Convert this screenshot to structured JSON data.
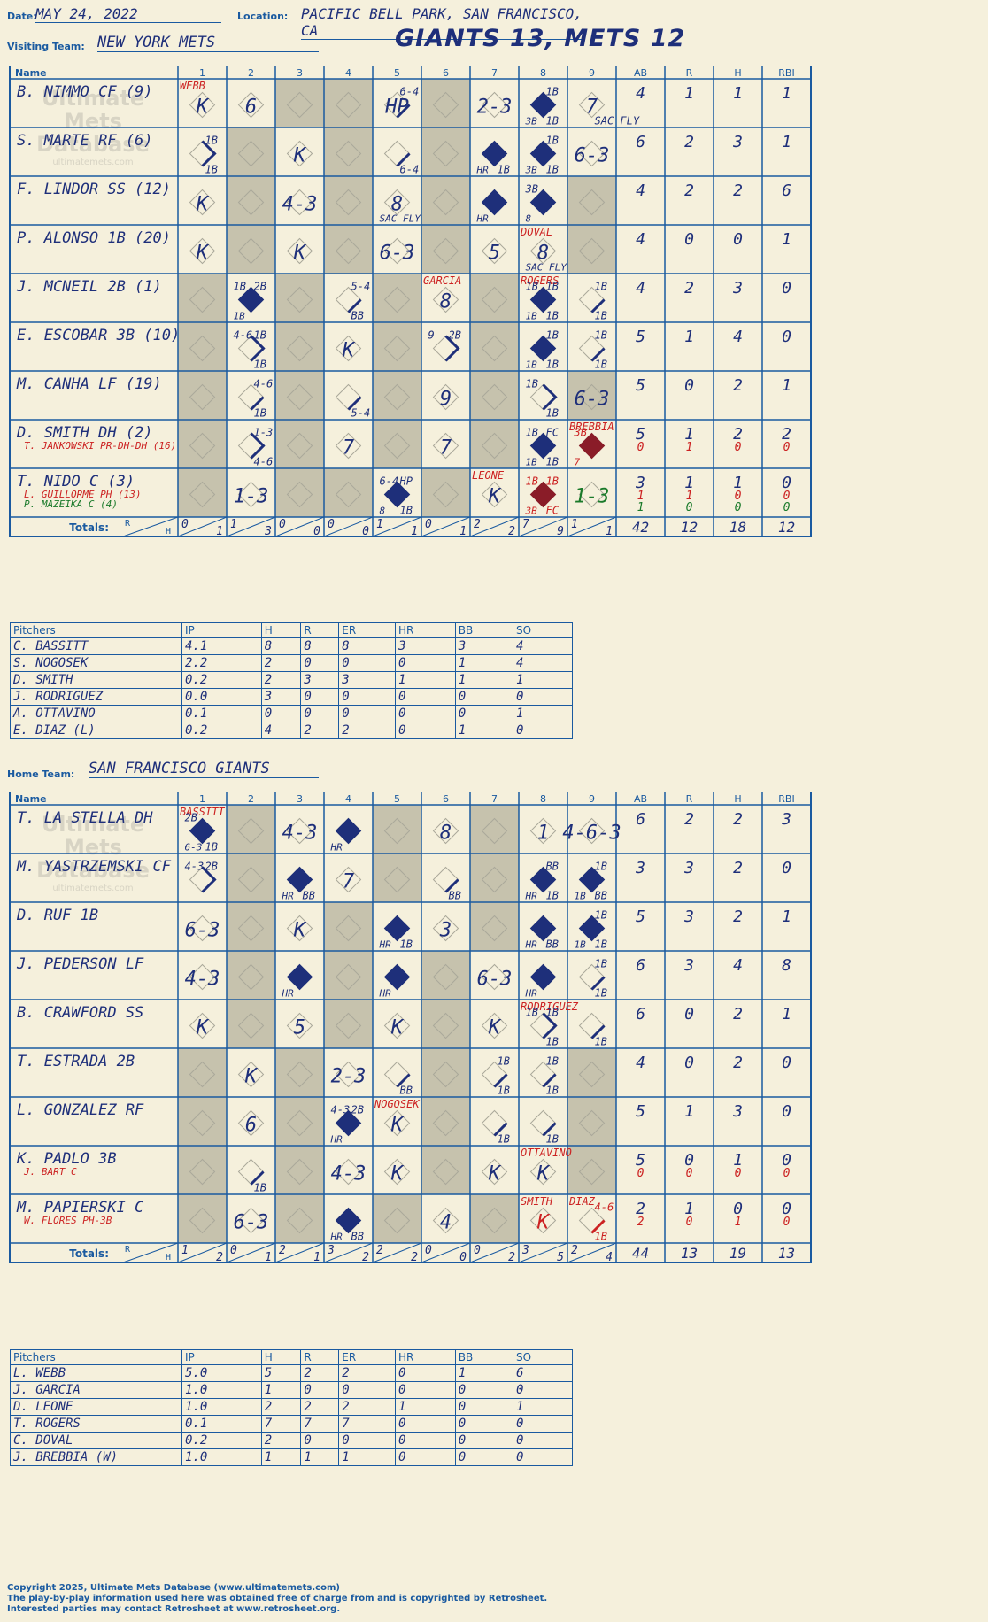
{
  "header": {
    "date_label": "Date:",
    "date": "MAY 24, 2022",
    "location_label": "Location:",
    "location": "PACIFIC BELL PARK, SAN FRANCISCO, CA",
    "visiting_label": "Visiting Team:",
    "visiting_team": "NEW YORK METS",
    "home_label": "Home Team:",
    "home_team": "SAN FRANCISCO GIANTS",
    "title": "GIANTS 13, METS 12"
  },
  "watermark": {
    "line1": "Ultimate",
    "line2": "Mets",
    "line3": "Database",
    "url": "ultimatemets.com"
  },
  "grid_labels": {
    "name": "Name",
    "innings": [
      "1",
      "2",
      "3",
      "4",
      "5",
      "6",
      "7",
      "8",
      "9"
    ],
    "stats": [
      "AB",
      "R",
      "H",
      "RBI"
    ],
    "totals": "Totals:",
    "r": "R",
    "h": "H"
  },
  "colors": {
    "ink": "#1e2f7a",
    "line": "#1a5aa0",
    "red": "#cc2222",
    "green": "#1a7a2a",
    "shade": "#c6c2ad",
    "bg": "#f5f0dc"
  },
  "visitors": {
    "players": [
      {
        "name": "B. NIMMO CF (9)",
        "subs": [],
        "stats": [
          [
            "4",
            "1",
            "1",
            "1"
          ]
        ]
      },
      {
        "name": "S. MARTE RF (6)",
        "subs": [],
        "stats": [
          [
            "6",
            "2",
            "3",
            "1"
          ]
        ]
      },
      {
        "name": "F. LINDOR SS (12)",
        "subs": [],
        "stats": [
          [
            "4",
            "2",
            "2",
            "6"
          ]
        ]
      },
      {
        "name": "P. ALONSO 1B (20)",
        "subs": [],
        "stats": [
          [
            "4",
            "0",
            "0",
            "1"
          ]
        ]
      },
      {
        "name": "J. MCNEIL 2B (1)",
        "subs": [],
        "stats": [
          [
            "4",
            "2",
            "3",
            "0"
          ]
        ]
      },
      {
        "name": "E. ESCOBAR 3B (10)",
        "subs": [],
        "stats": [
          [
            "5",
            "1",
            "4",
            "0"
          ]
        ]
      },
      {
        "name": "M. CANHA LF (19)",
        "subs": [],
        "stats": [
          [
            "5",
            "0",
            "2",
            "1"
          ]
        ]
      },
      {
        "name": "D. SMITH DH (2)",
        "subs": [
          {
            "name": "T. JANKOWSKI PR-DH-DH (16)",
            "color": "#cc2222"
          }
        ],
        "stats": [
          [
            "5",
            "1",
            "2",
            "2"
          ],
          [
            "0",
            "1",
            "0",
            "0"
          ]
        ]
      },
      {
        "name": "T. NIDO C (3)",
        "subs": [
          {
            "name": "L. GUILLORME PH (13)",
            "color": "#cc2222"
          },
          {
            "name": "P. MAZEIKA C (4)",
            "color": "#1a7a2a"
          }
        ],
        "stats": [
          [
            "3",
            "1",
            "1",
            "0"
          ],
          [
            "1",
            "1",
            "0",
            "0"
          ],
          [
            "1",
            "0",
            "0",
            "0"
          ]
        ]
      }
    ],
    "totals_by_inning": [
      [
        "0",
        "1"
      ],
      [
        "1",
        "3"
      ],
      [
        "0",
        "0"
      ],
      [
        "0",
        "0"
      ],
      [
        "1",
        "1"
      ],
      [
        "0",
        "1"
      ],
      [
        "2",
        "2"
      ],
      [
        "7",
        "9"
      ],
      [
        "1",
        "1"
      ]
    ],
    "totals": [
      "42",
      "12",
      "18",
      "12"
    ],
    "cells": [
      [
        {
          "i": 1,
          "t": "K",
          "top": "WEBB"
        },
        {
          "i": 2,
          "t": "6"
        },
        {
          "i": 5,
          "t": "HP",
          "tr": "6-4",
          "path": "1"
        },
        {
          "i": 7,
          "t": "2-3"
        },
        {
          "i": 8,
          "full": true,
          "tr": "1B",
          "bl": "3B",
          "br": "1B"
        },
        {
          "i": 9,
          "t": "7",
          "br": "SAC FLY"
        }
      ],
      [
        {
          "i": 1,
          "path": "2",
          "tr": "1B",
          "br": "1B"
        },
        {
          "i": 3,
          "t": "K"
        },
        {
          "i": 5,
          "path": "1",
          "br": "6-4"
        },
        {
          "i": 7,
          "full": true,
          "bl": "HR",
          "br": "1B"
        },
        {
          "i": 8,
          "full": true,
          "tr": "1B",
          "bl": "3B",
          "br": "1B"
        },
        {
          "i": 9,
          "t": "6-3"
        }
      ],
      [
        {
          "i": 1,
          "t": "K"
        },
        {
          "i": 3,
          "t": "4-3"
        },
        {
          "i": 5,
          "t": "8",
          "bl": "SAC FLY"
        },
        {
          "i": 7,
          "full": true,
          "bl": "HR"
        },
        {
          "i": 8,
          "full": true,
          "tl": "3B",
          "bl": "8"
        }
      ],
      [
        {
          "i": 1,
          "t": "K"
        },
        {
          "i": 3,
          "t": "K"
        },
        {
          "i": 5,
          "t": "6-3"
        },
        {
          "i": 7,
          "t": "5"
        },
        {
          "i": 8,
          "t": "8",
          "top": "DOVAL",
          "bl": "SAC FLY"
        }
      ],
      [
        {
          "i": 2,
          "full": true,
          "tl": "1B",
          "tr": "2B",
          "bl": "1B"
        },
        {
          "i": 4,
          "path": "1",
          "tr": "5-4",
          "br": "BB"
        },
        {
          "i": 6,
          "t": "8",
          "top": "GARCIA"
        },
        {
          "i": 8,
          "full": true,
          "top": "ROGERS",
          "tl": "1B",
          "tr": "1B",
          "bl": "1B",
          "br": "1B"
        },
        {
          "i": 9,
          "path": "1",
          "tr": "1B",
          "br": "1B"
        }
      ],
      [
        {
          "i": 2,
          "path": "2",
          "tl": "4-6",
          "tr": "1B",
          "br": "1B"
        },
        {
          "i": 4,
          "t": "K"
        },
        {
          "i": 6,
          "path": "2",
          "tl": "9",
          "tr": "2B"
        },
        {
          "i": 8,
          "full": true,
          "tr": "1B",
          "bl": "1B",
          "br": "1B"
        },
        {
          "i": 9,
          "path": "1",
          "tr": "1B",
          "br": "1B"
        }
      ],
      [
        {
          "i": 2,
          "path": "1",
          "tr": "4-6",
          "br": "1B"
        },
        {
          "i": 4,
          "path": "1",
          "br": "5-4"
        },
        {
          "i": 6,
          "t": "9"
        },
        {
          "i": 8,
          "path": "2",
          "tl": "1B",
          "br": "1B"
        },
        {
          "i": 8,
          "t2": "6-3"
        }
      ],
      [
        {
          "i": 2,
          "path": "2",
          "tr": "1-3",
          "br": "4-6"
        },
        {
          "i": 4,
          "t": "7"
        },
        {
          "i": 6,
          "t": "7"
        },
        {
          "i": 8,
          "full": true,
          "tl": "1B",
          "tr": "FC",
          "bl": "1B",
          "br": "1B"
        },
        {
          "i": 9,
          "full": true,
          "fill": "#8a1c28",
          "top": "BREBBIA",
          "tl": "3B",
          "bl": "7",
          "color": "#cc2222"
        }
      ],
      [
        {
          "i": 2,
          "t": "1-3"
        },
        {
          "i": 5,
          "full": true,
          "tl": "6-4",
          "tr": "HP",
          "bl": "8",
          "br": "1B"
        },
        {
          "i": 7,
          "t": "K",
          "top": "LEONE"
        },
        {
          "i": 8,
          "full": true,
          "fill": "#8a1c28",
          "color": "#cc2222",
          "tl": "1B",
          "tr": "1B",
          "bl": "3B",
          "br": "FC"
        },
        {
          "i": 9,
          "t": "1-3",
          "color": "#1a7a2a"
        }
      ]
    ]
  },
  "visiting_pitchers": {
    "headers": [
      "Pitchers",
      "IP",
      "H",
      "R",
      "ER",
      "HR",
      "BB",
      "SO"
    ],
    "rows": [
      [
        "C. BASSITT",
        "4.1",
        "8",
        "8",
        "8",
        "3",
        "3",
        "4"
      ],
      [
        "S. NOGOSEK",
        "2.2",
        "2",
        "0",
        "0",
        "0",
        "1",
        "4"
      ],
      [
        "D. SMITH",
        "0.2",
        "2",
        "3",
        "3",
        "1",
        "1",
        "1"
      ],
      [
        "J. RODRIGUEZ",
        "0.0",
        "3",
        "0",
        "0",
        "0",
        "0",
        "0"
      ],
      [
        "A. OTTAVINO",
        "0.1",
        "0",
        "0",
        "0",
        "0",
        "0",
        "1"
      ],
      [
        "E. DIAZ (L)",
        "0.2",
        "4",
        "2",
        "2",
        "0",
        "1",
        "0"
      ]
    ]
  },
  "home": {
    "players": [
      {
        "name": "T. LA STELLA DH",
        "subs": [],
        "stats": [
          [
            "6",
            "2",
            "2",
            "3"
          ]
        ]
      },
      {
        "name": "M. YASTRZEMSKI CF",
        "subs": [],
        "stats": [
          [
            "3",
            "3",
            "2",
            "0"
          ]
        ]
      },
      {
        "name": "D. RUF 1B",
        "subs": [],
        "stats": [
          [
            "5",
            "3",
            "2",
            "1"
          ]
        ]
      },
      {
        "name": "J. PEDERSON LF",
        "subs": [],
        "stats": [
          [
            "6",
            "3",
            "4",
            "8"
          ]
        ]
      },
      {
        "name": "B. CRAWFORD SS",
        "subs": [],
        "stats": [
          [
            "6",
            "0",
            "2",
            "1"
          ]
        ]
      },
      {
        "name": "T. ESTRADA 2B",
        "subs": [],
        "stats": [
          [
            "4",
            "0",
            "2",
            "0"
          ]
        ]
      },
      {
        "name": "L. GONZALEZ RF",
        "subs": [],
        "stats": [
          [
            "5",
            "1",
            "3",
            "0"
          ]
        ]
      },
      {
        "name": "K. PADLO 3B",
        "subs": [
          {
            "name": "J. BART C",
            "color": "#cc2222"
          }
        ],
        "stats": [
          [
            "5",
            "0",
            "1",
            "0"
          ],
          [
            "0",
            "0",
            "0",
            "0"
          ]
        ]
      },
      {
        "name": "M. PAPIERSKI C",
        "subs": [
          {
            "name": "W. FLORES PH-3B",
            "color": "#cc2222"
          }
        ],
        "stats": [
          [
            "2",
            "1",
            "0",
            "0"
          ],
          [
            "2",
            "0",
            "1",
            "0"
          ]
        ]
      }
    ],
    "totals_by_inning": [
      [
        "1",
        "2"
      ],
      [
        "0",
        "1"
      ],
      [
        "2",
        "1"
      ],
      [
        "3",
        "2"
      ],
      [
        "2",
        "2"
      ],
      [
        "0",
        "0"
      ],
      [
        "0",
        "2"
      ],
      [
        "3",
        "5"
      ],
      [
        "2",
        "4"
      ]
    ],
    "totals": [
      "44",
      "13",
      "19",
      "13"
    ],
    "cells": [
      [
        {
          "i": 1,
          "full": true,
          "top": "BASSITT",
          "tl": "2B",
          "bl": "6-3",
          "br": "1B"
        },
        {
          "i": 3,
          "t": "4-3"
        },
        {
          "i": 4,
          "full": true,
          "bl": "HR"
        },
        {
          "i": 6,
          "t": "8"
        },
        {
          "i": 8,
          "t": "1"
        },
        {
          "i": 9,
          "t": "4-6-3"
        }
      ],
      [
        {
          "i": 1,
          "path": "2",
          "tl": "4-3",
          "tr": "2B"
        },
        {
          "i": 3,
          "full": true,
          "bl": "HR",
          "br": "BB"
        },
        {
          "i": 4,
          "t": "7"
        },
        {
          "i": 6,
          "path": "1",
          "br": "BB"
        },
        {
          "i": 8,
          "full": true,
          "tr": "BB",
          "bl": "HR",
          "br": "1B"
        },
        {
          "i": 9,
          "full": true,
          "tr": "1B",
          "bl": "1B",
          "br": "BB"
        }
      ],
      [
        {
          "i": 1,
          "t": "6-3"
        },
        {
          "i": 3,
          "t": "K"
        },
        {
          "i": 5,
          "full": true,
          "bl": "HR",
          "br": "1B"
        },
        {
          "i": 6,
          "t": "3"
        },
        {
          "i": 8,
          "full": true,
          "bl": "HR",
          "br": "BB"
        },
        {
          "i": 9,
          "full": true,
          "tr": "1B",
          "bl": "1B",
          "br": "1B"
        }
      ],
      [
        {
          "i": 1,
          "t": "4-3"
        },
        {
          "i": 3,
          "full": true,
          "bl": "HR"
        },
        {
          "i": 5,
          "full": true,
          "bl": "HR"
        },
        {
          "i": 7,
          "t": "6-3"
        },
        {
          "i": 8,
          "full": true,
          "bl": "HR"
        },
        {
          "i": 9,
          "path": "1",
          "tr": "1B",
          "br": "1B"
        }
      ],
      [
        {
          "i": 1,
          "t": "K"
        },
        {
          "i": 3,
          "t": "5"
        },
        {
          "i": 5,
          "t": "K"
        },
        {
          "i": 7,
          "t": "K"
        },
        {
          "i": 8,
          "path": "2",
          "top": "RODRIGUEZ",
          "tl": "1B",
          "tr": "1B",
          "br": "1B"
        },
        {
          "i": 9,
          "path": "1",
          "br": "1B"
        }
      ],
      [
        {
          "i": 2,
          "t": "K"
        },
        {
          "i": 4,
          "t": "2-3"
        },
        {
          "i": 5,
          "path": "1",
          "br": "BB"
        },
        {
          "i": 7,
          "path": "1",
          "tr": "1B",
          "br": "1B"
        },
        {
          "i": 8,
          "path": "1",
          "tr": "1B",
          "br": "1B"
        }
      ],
      [
        {
          "i": 2,
          "t": "6"
        },
        {
          "i": 4,
          "full": true,
          "tl": "4-3",
          "tr": "2B",
          "bl": "HR"
        },
        {
          "i": 5,
          "t": "K",
          "top": "NOGOSEK"
        },
        {
          "i": 7,
          "path": "1",
          "br": "1B"
        },
        {
          "i": 8,
          "path": "1",
          "br": "1B"
        }
      ],
      [
        {
          "i": 2,
          "path": "1",
          "br": "1B"
        },
        {
          "i": 4,
          "t": "4-3"
        },
        {
          "i": 5,
          "t": "K"
        },
        {
          "i": 7,
          "t": "K"
        },
        {
          "i": 8,
          "t": "K",
          "top": "OTTAVINO"
        }
      ],
      [
        {
          "i": 2,
          "t": "6-3"
        },
        {
          "i": 4,
          "full": true,
          "bl": "HR",
          "br": "BB"
        },
        {
          "i": 6,
          "t": "4"
        },
        {
          "i": 8,
          "t": "K",
          "top": "SMITH",
          "color": "#cc2222"
        },
        {
          "i": 9,
          "path": "1",
          "top": "DIAZ",
          "tr": "4-6",
          "br": "1B",
          "color": "#cc2222"
        }
      ]
    ]
  },
  "home_pitchers": {
    "headers": [
      "Pitchers",
      "IP",
      "H",
      "R",
      "ER",
      "HR",
      "BB",
      "SO"
    ],
    "rows": [
      [
        "L. WEBB",
        "5.0",
        "5",
        "2",
        "2",
        "0",
        "1",
        "6"
      ],
      [
        "J. GARCIA",
        "1.0",
        "1",
        "0",
        "0",
        "0",
        "0",
        "0"
      ],
      [
        "D. LEONE",
        "1.0",
        "2",
        "2",
        "2",
        "1",
        "0",
        "1"
      ],
      [
        "T. ROGERS",
        "0.1",
        "7",
        "7",
        "7",
        "0",
        "0",
        "0"
      ],
      [
        "C. DOVAL",
        "0.2",
        "2",
        "0",
        "0",
        "0",
        "0",
        "0"
      ],
      [
        "J. BREBBIA (W)",
        "1.0",
        "1",
        "1",
        "1",
        "0",
        "0",
        "0"
      ]
    ]
  },
  "footer": {
    "line1": "Copyright 2025, Ultimate Mets Database (www.ultimatemets.com)",
    "line2": "The play-by-play information used here was obtained free of charge from and is copyrighted by Retrosheet.",
    "line3": "Interested parties may contact Retrosheet at www.retrosheet.org."
  }
}
